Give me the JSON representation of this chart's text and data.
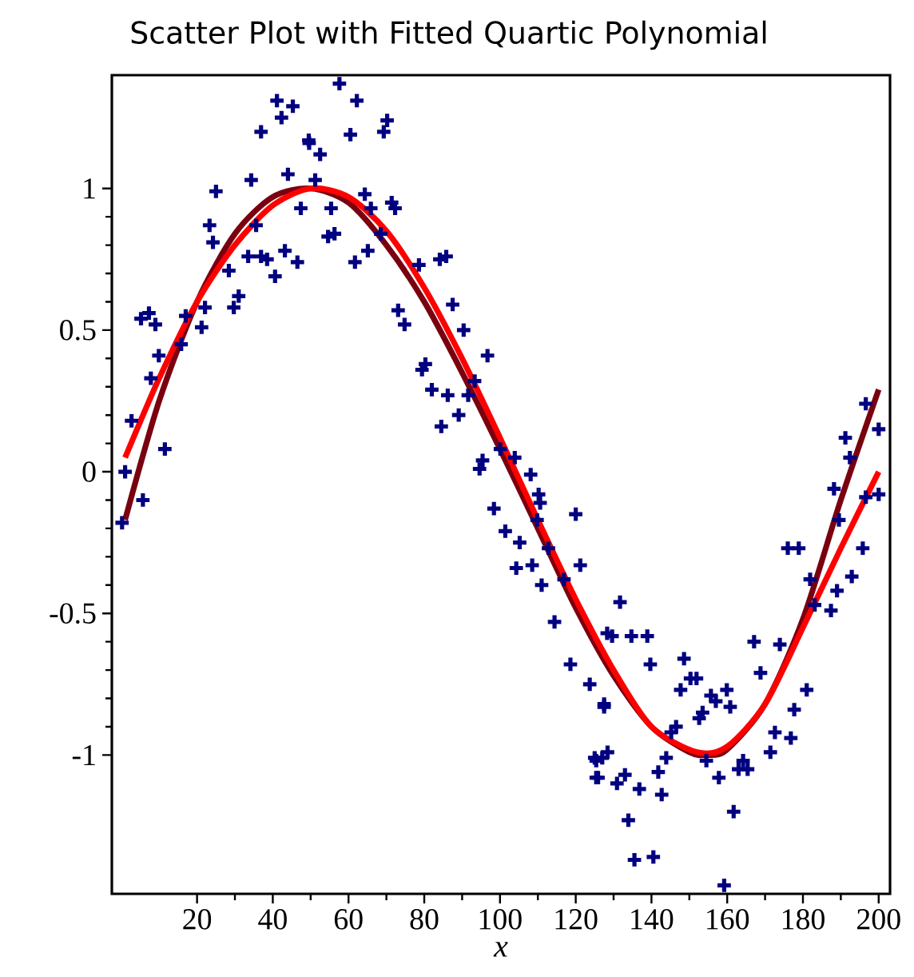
{
  "chart_data": {
    "type": "scatter",
    "title": "Scatter Plot with Fitted Quartic Polynomial",
    "xlabel": "*x*",
    "xlim": [
      -2.5,
      203
    ],
    "ylim": [
      -1.49,
      1.4
    ],
    "xticks": [
      20,
      40,
      60,
      80,
      100,
      120,
      140,
      160,
      180,
      200
    ],
    "yticks": [
      -1,
      -0.5,
      0,
      0.5,
      1
    ],
    "series": [
      {
        "marker": "cross",
        "color": "#000080",
        "x": [
          41.1,
          45.3,
          42.3,
          36.9,
          49.5,
          34.3,
          44,
          25,
          47.4,
          23.3,
          35.6,
          24.2,
          33.5,
          36.9,
          38.5,
          43.2,
          46.5,
          40.6,
          28.4,
          31,
          29.7,
          22.1,
          17,
          21.2,
          7.3,
          5.2,
          9,
          15.8,
          9.9,
          7.8,
          2.7,
          11.5,
          1,
          5.7,
          0.2,
          57.6,
          62.2,
          60.5,
          70.2,
          69.3,
          49.6,
          52.5,
          51.2,
          64.3,
          65.9,
          71.4,
          72.3,
          55.4,
          68.5,
          54.6,
          56.3,
          61.7,
          65.1,
          78.6,
          84.1,
          85.8,
          87.5,
          73.1,
          74.8,
          90.4,
          80.3,
          79.4,
          96.7,
          82,
          86.2,
          93.3,
          91.6,
          89.1,
          84.5,
          95.4,
          100.1,
          103.9,
          108.1,
          110.2,
          94.6,
          98.4,
          110.6,
          109.8,
          101.4,
          105.2,
          112.8,
          120,
          104.3,
          108.5,
          116.9,
          111,
          121.2,
          114.4,
          118.6,
          123.7,
          127.5,
          125,
          127,
          125.4,
          128.3,
          188.2,
          189.5,
          176,
          178.9,
          195.8,
          181.9,
          192.9,
          183.1,
          187.4,
          189,
          131.7,
          129.6,
          134.7,
          138.9,
          139.7,
          148.6,
          150.3,
          151.9,
          147.7,
          155.7,
          159.9,
          157,
          160.8,
          153.5,
          152.6,
          167.1,
          173.9,
          168.8,
          181,
          177.7,
          127.5,
          146.5,
          145.2,
          172.6,
          176.8,
          171.4,
          143.9,
          128.4,
          125.4,
          154.5,
          164.2,
          165.4,
          163,
          141.8,
          125.9,
          130.9,
          133,
          157.8,
          136.8,
          142.7,
          133.9,
          161.7,
          135.5,
          140.5,
          159.2,
          196.6,
          200,
          196.6,
          200,
          191.2,
          192.4
        ],
        "values": [
          1.31,
          1.29,
          1.25,
          1.2,
          1.17,
          1.03,
          1.05,
          0.99,
          0.93,
          0.87,
          0.87,
          0.81,
          0.76,
          0.76,
          0.75,
          0.78,
          0.74,
          0.69,
          0.71,
          0.62,
          0.58,
          0.58,
          0.55,
          0.51,
          0.56,
          0.54,
          0.52,
          0.45,
          0.41,
          0.33,
          0.18,
          0.08,
          0,
          -0.1,
          -0.18,
          1.37,
          1.31,
          1.19,
          1.24,
          1.2,
          1.16,
          1.12,
          1.03,
          0.98,
          0.93,
          0.95,
          0.93,
          0.93,
          0.84,
          0.83,
          0.84,
          0.74,
          0.78,
          0.73,
          0.75,
          0.76,
          0.59,
          0.57,
          0.52,
          0.5,
          0.38,
          0.36,
          0.41,
          0.29,
          0.27,
          0.32,
          0.27,
          0.2,
          0.16,
          0.04,
          0.08,
          0.05,
          -0.01,
          -0.08,
          0.01,
          -0.13,
          -0.11,
          -0.17,
          -0.21,
          -0.25,
          -0.27,
          -0.15,
          -0.34,
          -0.33,
          -0.38,
          -0.4,
          -0.33,
          -0.53,
          -0.68,
          -0.75,
          -0.82,
          -1.01,
          -1.01,
          -1.08,
          -0.57,
          -0.06,
          -0.17,
          -0.27,
          -0.27,
          -0.27,
          -0.38,
          -0.37,
          -0.47,
          -0.49,
          -0.42,
          -0.46,
          -0.58,
          -0.58,
          -0.58,
          -0.68,
          -0.66,
          -0.73,
          -0.73,
          -0.77,
          -0.79,
          -0.77,
          -0.81,
          -0.83,
          -0.85,
          -0.87,
          -0.6,
          -0.61,
          -0.71,
          -0.77,
          -0.84,
          -0.83,
          -0.9,
          -0.92,
          -0.92,
          -0.94,
          -0.99,
          -1.01,
          -0.99,
          -1.02,
          -1.02,
          -1.02,
          -1.05,
          -1.05,
          -1.06,
          -1.08,
          -1.1,
          -1.07,
          -1.08,
          -1.12,
          -1.14,
          -1.23,
          -1.2,
          -1.37,
          -1.36,
          -1.46,
          -0.09,
          -0.08,
          0.24,
          0.15,
          0.12,
          0.05
        ]
      },
      {
        "type": "line",
        "color": "#7a0010",
        "x": [
          1,
          10,
          20,
          30,
          40,
          50,
          60,
          70,
          80,
          90,
          100,
          110,
          120,
          130,
          140,
          150,
          155,
          160,
          170,
          180,
          190,
          200
        ],
        "values": [
          -0.17,
          0.25,
          0.6,
          0.84,
          0.97,
          1.0,
          0.95,
          0.8,
          0.6,
          0.35,
          0.08,
          -0.2,
          -0.48,
          -0.72,
          -0.9,
          -0.99,
          -1.0,
          -0.98,
          -0.82,
          -0.52,
          -0.1,
          0.29
        ]
      },
      {
        "type": "line",
        "color": "#ff0000",
        "x": [
          1,
          10,
          20,
          30,
          40,
          50,
          60,
          70,
          80,
          90,
          100,
          110,
          120,
          130,
          140,
          152,
          160,
          170,
          180,
          190,
          200
        ],
        "values": [
          0.05,
          0.33,
          0.6,
          0.8,
          0.94,
          1.0,
          0.97,
          0.85,
          0.65,
          0.4,
          0.12,
          -0.17,
          -0.45,
          -0.7,
          -0.9,
          -0.99,
          -0.97,
          -0.82,
          -0.55,
          -0.27,
          0.0
        ]
      }
    ]
  }
}
